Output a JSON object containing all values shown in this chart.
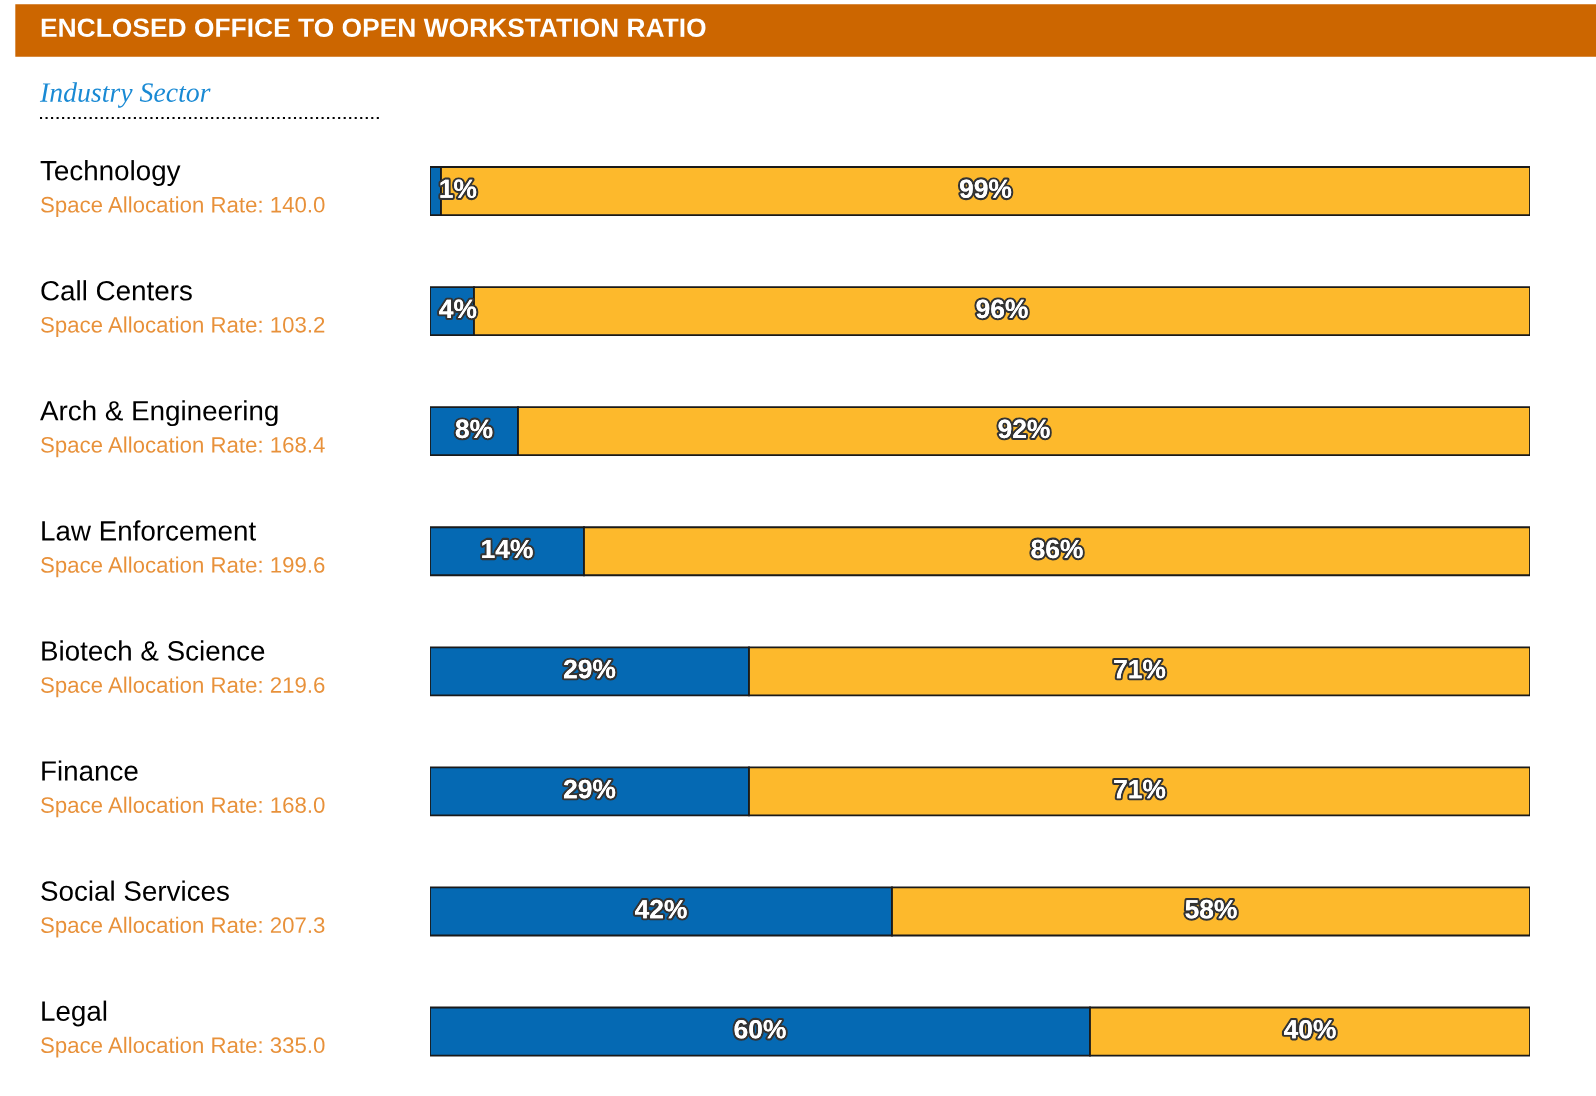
{
  "chart_data": {
    "type": "bar",
    "orientation": "horizontal",
    "stacked": true,
    "title": "ENCLOSED OFFICE TO OPEN WORKSTATION RATIO",
    "ylabel": "Industry Sector",
    "categories": [
      "Technology",
      "Call Centers",
      "Arch & Engineering",
      "Law Enforcement",
      "Biotech & Science",
      "Finance",
      "Social Services",
      "Legal"
    ],
    "series": [
      {
        "color": "#0569b3",
        "values": [
          1,
          4,
          8,
          14,
          29,
          29,
          42,
          60
        ],
        "value_labels": [
          "1%",
          "4%",
          "8%",
          "14%",
          "29%",
          "29%",
          "42%",
          "60%"
        ]
      },
      {
        "color": "#fdb92c",
        "values": [
          99,
          96,
          92,
          86,
          71,
          71,
          58,
          40
        ],
        "value_labels": [
          "99%",
          "96%",
          "92%",
          "86%",
          "71%",
          "71%",
          "58%",
          "40%"
        ]
      }
    ],
    "annotations": [
      "Space Allocation Rate: 140.0",
      "Space Allocation Rate: 103.2",
      "Space Allocation Rate: 168.4",
      "Space Allocation Rate: 199.6",
      "Space Allocation Rate: 219.6",
      "Space Allocation Rate: 168.0",
      "Space Allocation Rate: 207.3",
      "Space Allocation Rate: 335.0"
    ]
  }
}
